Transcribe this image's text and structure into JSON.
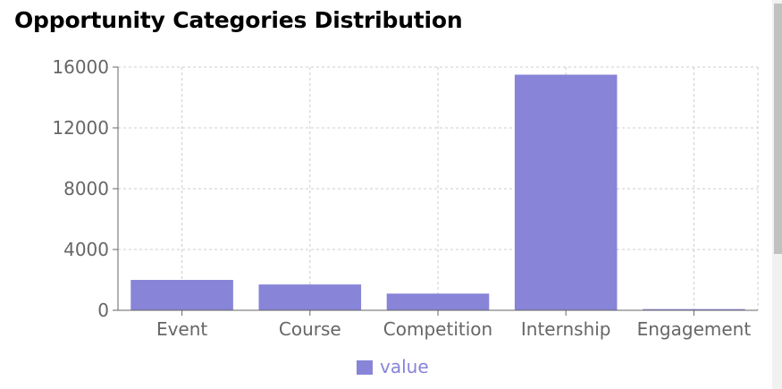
{
  "page": {
    "title": "Opportunity Categories Distribution"
  },
  "colors": {
    "bar": "#8884d8",
    "grid": "#cccccc",
    "axis": "#666666",
    "tick_text": "#666666"
  },
  "chart_data": {
    "type": "bar",
    "title": "",
    "xlabel": "",
    "ylabel": "",
    "categories": [
      "Event",
      "Course",
      "Competition",
      "Internship",
      "Engagement"
    ],
    "series": [
      {
        "name": "value",
        "values": [
          2000,
          1700,
          1100,
          15500,
          80
        ]
      }
    ],
    "ylim": [
      0,
      16000
    ],
    "yticks": [
      "0",
      "4000",
      "8000",
      "12000",
      "16000"
    ],
    "grid": true,
    "legend": "bottom"
  }
}
